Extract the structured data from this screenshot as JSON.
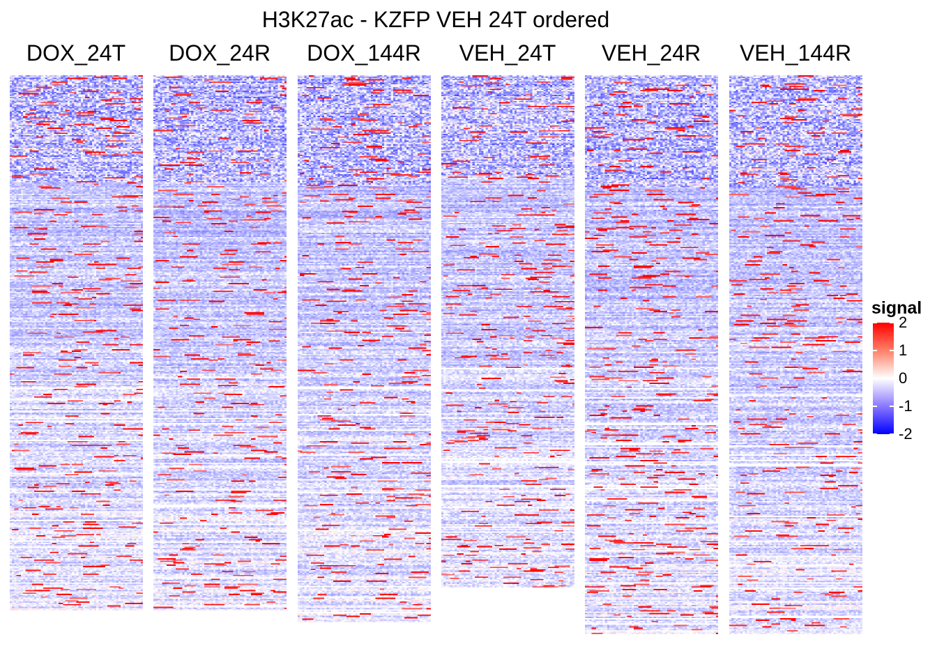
{
  "chart_data": {
    "type": "heatmap",
    "title": "H3K27ac - KZFP VEH 24T ordered",
    "panels": [
      {
        "label": "DOX_24T",
        "coverage": 0.92
      },
      {
        "label": "DOX_24R",
        "coverage": 0.92
      },
      {
        "label": "DOX_144R",
        "coverage": 0.94
      },
      {
        "label": "VEH_24T",
        "coverage": 0.88
      },
      {
        "label": "VEH_24R",
        "coverage": 0.96
      },
      {
        "label": "VEH_144R",
        "coverage": 0.96
      }
    ],
    "row_order": "VEH 24T",
    "legend": {
      "title": "signal",
      "ticks": [
        {
          "value": 2,
          "label": "2"
        },
        {
          "value": 1,
          "label": "1"
        },
        {
          "value": 0,
          "label": "0"
        },
        {
          "value": -1,
          "label": "-1"
        },
        {
          "value": -2,
          "label": "-2"
        }
      ],
      "colors": {
        "low": "#0000ff",
        "mid": "#ffffff",
        "high": "#ff0000"
      },
      "range": [
        -2,
        2
      ],
      "placement": "right"
    }
  }
}
